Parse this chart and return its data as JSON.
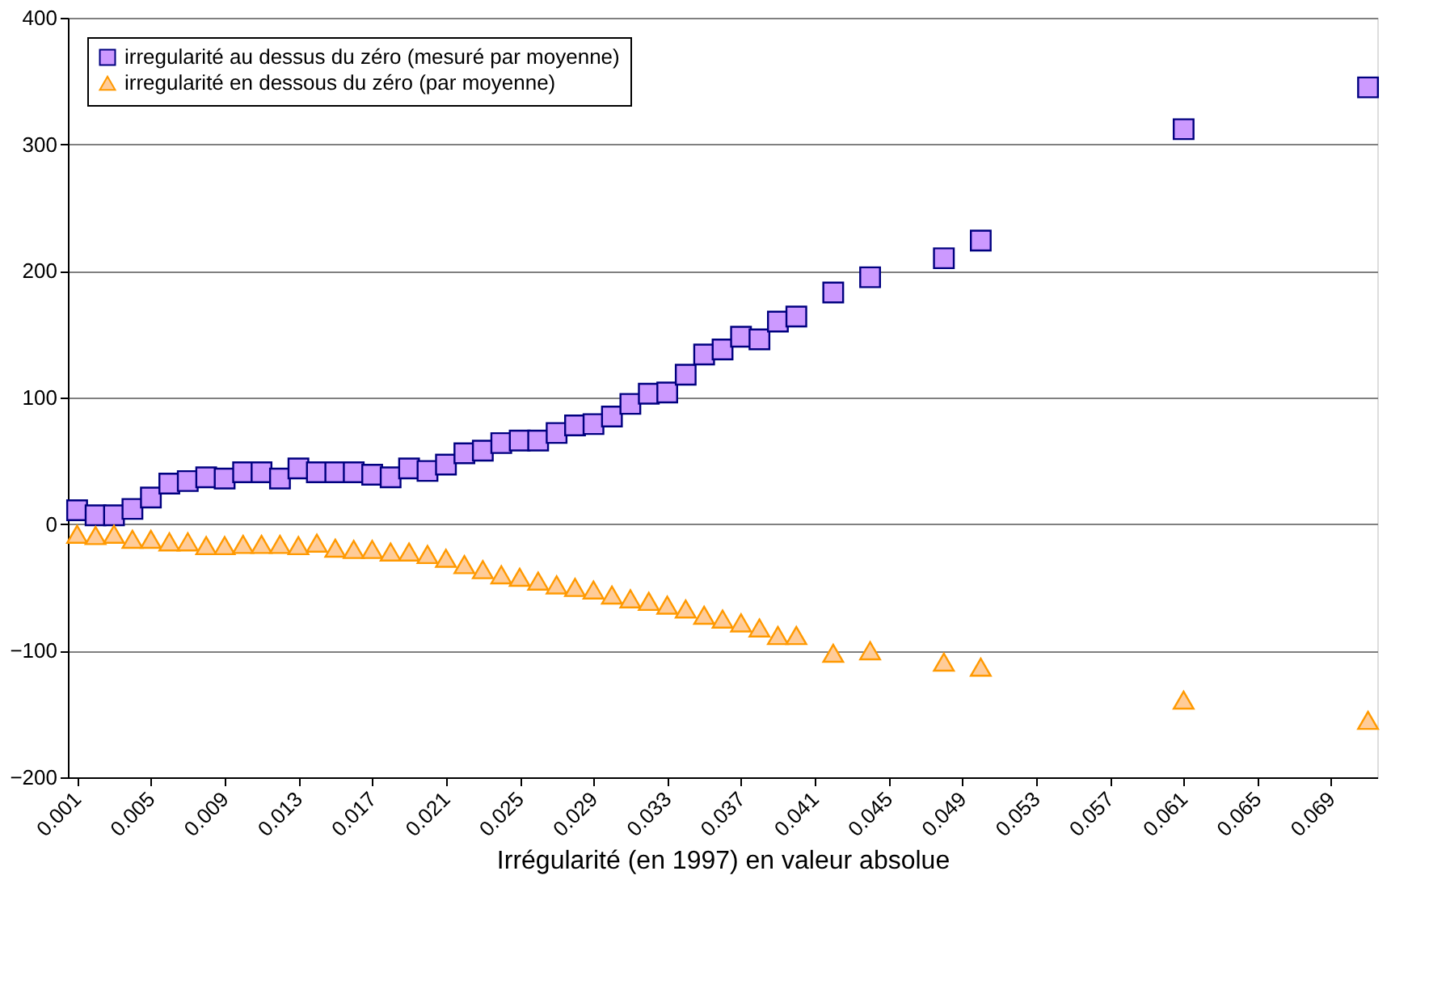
{
  "chart_data": {
    "type": "scatter",
    "xlabel": "Irrégularité (en 1997) en valeur absolue",
    "xlim": [
      0.0005,
      0.0715
    ],
    "xticks": [
      0.001,
      0.005,
      0.009,
      0.013,
      0.017,
      0.021,
      0.025,
      0.029,
      0.033,
      0.037,
      0.041,
      0.045,
      0.049,
      0.053,
      0.057,
      0.061,
      0.065,
      0.069
    ],
    "ylim": [
      -200,
      400
    ],
    "yticks": [
      -200,
      -100,
      0,
      100,
      200,
      300,
      400
    ],
    "grid": "y",
    "legend": "top left",
    "series": [
      {
        "name": "irregularité au dessus du zéro (mesuré par moyenne)",
        "color": "#cc99ff",
        "marker": "square",
        "x": [
          0.001,
          0.002,
          0.003,
          0.004,
          0.005,
          0.006,
          0.007,
          0.008,
          0.009,
          0.01,
          0.011,
          0.012,
          0.013,
          0.014,
          0.015,
          0.016,
          0.017,
          0.018,
          0.019,
          0.02,
          0.021,
          0.022,
          0.023,
          0.024,
          0.025,
          0.026,
          0.027,
          0.028,
          0.029,
          0.03,
          0.031,
          0.032,
          0.033,
          0.034,
          0.035,
          0.036,
          0.037,
          0.038,
          0.039,
          0.04,
          0.042,
          0.044,
          0.048,
          0.05,
          0.061,
          0.071
        ],
        "values": [
          11,
          7,
          7,
          12,
          21,
          32,
          34,
          37,
          36,
          41,
          41,
          36,
          44,
          41,
          41,
          41,
          39,
          37,
          44,
          42,
          47,
          56,
          58,
          64,
          66,
          66,
          72,
          78,
          79,
          85,
          95,
          103,
          104,
          118,
          134,
          138,
          148,
          146,
          160,
          164,
          183,
          195,
          210,
          224,
          312,
          345
        ]
      },
      {
        "name": "irregularité en dessous du zéro (par moyenne)",
        "color": "#ffcc99",
        "marker": "triangle",
        "x": [
          0.001,
          0.002,
          0.003,
          0.004,
          0.005,
          0.006,
          0.007,
          0.008,
          0.009,
          0.01,
          0.011,
          0.012,
          0.013,
          0.014,
          0.015,
          0.016,
          0.017,
          0.018,
          0.019,
          0.02,
          0.021,
          0.022,
          0.023,
          0.024,
          0.025,
          0.026,
          0.027,
          0.028,
          0.029,
          0.03,
          0.031,
          0.032,
          0.033,
          0.034,
          0.035,
          0.036,
          0.037,
          0.038,
          0.039,
          0.04,
          0.042,
          0.044,
          0.048,
          0.05,
          0.061,
          0.071
        ],
        "values": [
          -8,
          -9,
          -8,
          -12,
          -12,
          -14,
          -14,
          -17,
          -17,
          -16,
          -16,
          -16,
          -17,
          -15,
          -19,
          -20,
          -20,
          -22,
          -22,
          -24,
          -27,
          -32,
          -36,
          -40,
          -42,
          -45,
          -48,
          -50,
          -52,
          -56,
          -59,
          -61,
          -64,
          -67,
          -72,
          -75,
          -78,
          -82,
          -88,
          -88,
          -102,
          -100,
          -109,
          -113,
          -139,
          -155
        ]
      }
    ]
  }
}
